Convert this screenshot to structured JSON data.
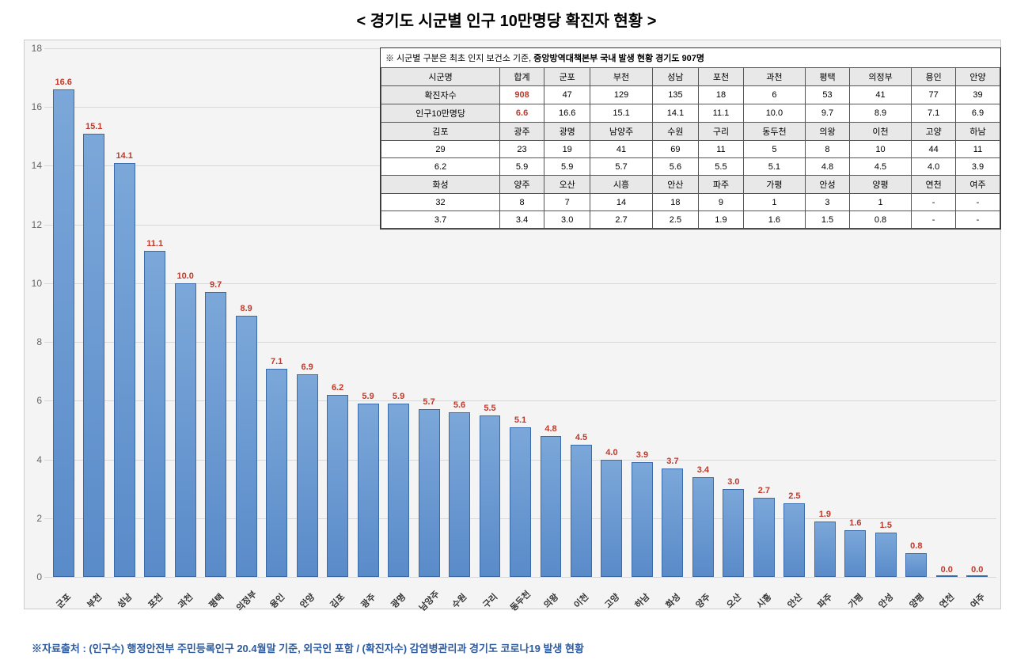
{
  "title": "< 경기도 시군별 인구 10만명당 확진자 현황 >",
  "chart": {
    "type": "bar",
    "ylim": [
      0,
      18
    ],
    "ytick_step": 2,
    "background_color": "#f4f4f4",
    "grid_color": "#d8d8d8",
    "bar_color_top": "#7ba7d9",
    "bar_color_bottom": "#5a8bc9",
    "bar_border": "#3a6ba8",
    "label_color": "#c0392b",
    "label_fontsize": 11,
    "xlabel_fontsize": 11,
    "ylabel_fontsize": 12,
    "categories": [
      "군포",
      "부천",
      "성남",
      "포천",
      "과천",
      "평택",
      "의정부",
      "용인",
      "안양",
      "김포",
      "광주",
      "광명",
      "남양주",
      "수원",
      "구리",
      "동두천",
      "의왕",
      "이천",
      "고양",
      "하남",
      "화성",
      "양주",
      "오산",
      "시흥",
      "안산",
      "파주",
      "가평",
      "안성",
      "양평",
      "연천",
      "여주"
    ],
    "values": [
      16.6,
      15.1,
      14.1,
      11.1,
      10.0,
      9.7,
      8.9,
      7.1,
      6.9,
      6.2,
      5.9,
      5.9,
      5.7,
      5.6,
      5.5,
      5.1,
      4.8,
      4.5,
      4.0,
      3.9,
      3.7,
      3.4,
      3.0,
      2.7,
      2.5,
      1.9,
      1.6,
      1.5,
      0.8,
      0.0,
      0.0
    ],
    "value_labels": [
      "16.6",
      "15.1",
      "14.1",
      "11.1",
      "10.0",
      "9.7",
      "8.9",
      "7.1",
      "6.9",
      "6.2",
      "5.9",
      "5.9",
      "5.7",
      "5.6",
      "5.5",
      "5.1",
      "4.8",
      "4.5",
      "4.0",
      "3.9",
      "3.7",
      "3.4",
      "3.0",
      "2.7",
      "2.5",
      "1.9",
      "1.6",
      "1.5",
      "0.8",
      "0.0",
      "0.0"
    ]
  },
  "table": {
    "note_prefix": "※ 시군별 구분은 최초 인지 보건소 기준, ",
    "note_bold": "중앙방역대책본부 국내 발생 현황 경기도 907명",
    "header_cells": [
      "시군명",
      "합계",
      "군포",
      "부천",
      "성남",
      "포천",
      "과천",
      "평택",
      "의정부",
      "용인",
      "안양"
    ],
    "row_labels": [
      "확진자수",
      "인구10만명당"
    ],
    "total_confirmed": "908",
    "total_per100k": "6.6",
    "block1": {
      "confirmed": [
        "47",
        "129",
        "135",
        "18",
        "6",
        "53",
        "41",
        "77",
        "39"
      ],
      "per100k": [
        "16.6",
        "15.1",
        "14.1",
        "11.1",
        "10.0",
        "9.7",
        "8.9",
        "7.1",
        "6.9"
      ]
    },
    "block2": {
      "cities": [
        "김포",
        "광주",
        "광명",
        "남양주",
        "수원",
        "구리",
        "동두천",
        "의왕",
        "이천",
        "고양",
        "하남"
      ],
      "confirmed": [
        "29",
        "23",
        "19",
        "41",
        "69",
        "11",
        "5",
        "8",
        "10",
        "44",
        "11"
      ],
      "per100k": [
        "6.2",
        "5.9",
        "5.9",
        "5.7",
        "5.6",
        "5.5",
        "5.1",
        "4.8",
        "4.5",
        "4.0",
        "3.9"
      ]
    },
    "block3": {
      "cities": [
        "화성",
        "양주",
        "오산",
        "시흥",
        "안산",
        "파주",
        "가평",
        "안성",
        "양평",
        "연천",
        "여주"
      ],
      "confirmed": [
        "32",
        "8",
        "7",
        "14",
        "18",
        "9",
        "1",
        "3",
        "1",
        "-",
        "-"
      ],
      "per100k": [
        "3.7",
        "3.4",
        "3.0",
        "2.7",
        "2.5",
        "1.9",
        "1.6",
        "1.5",
        "0.8",
        "-",
        "-"
      ]
    }
  },
  "footer": "※자료출처 : (인구수) 행정안전부 주민등록인구 20.4월말 기준, 외국인 포함 / (확진자수) 감염병관리과 경기도 코로나19 발생 현황"
}
